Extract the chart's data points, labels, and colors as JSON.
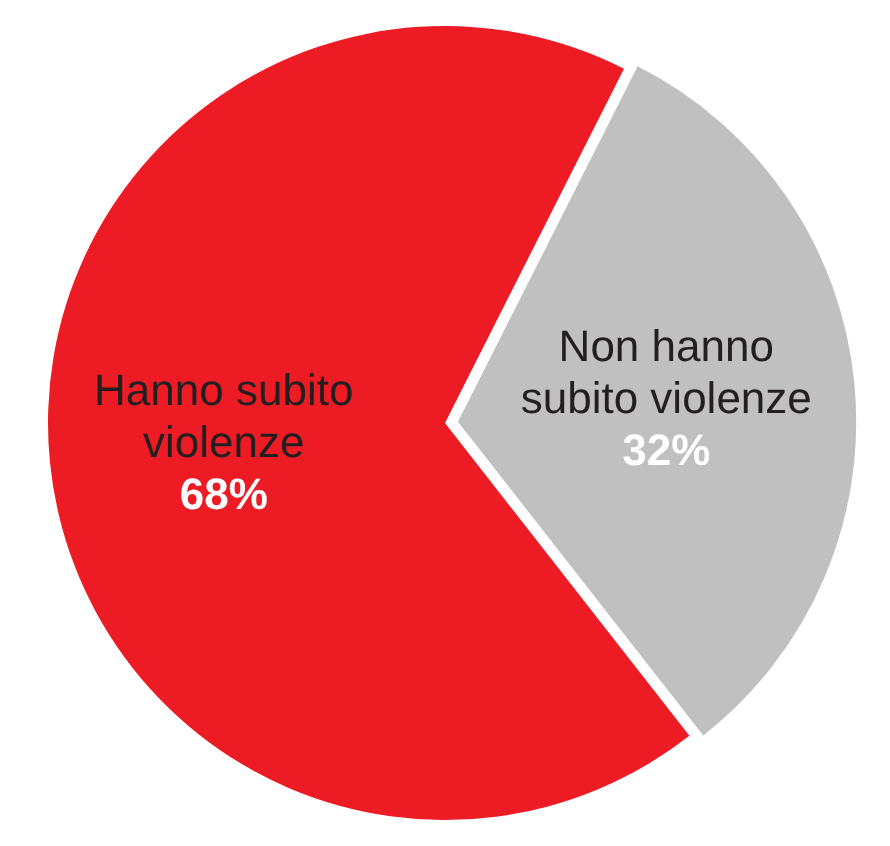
{
  "chart_data": {
    "type": "pie",
    "categories": [
      "Hanno subito violenze",
      "Non hanno subito violenze"
    ],
    "values": [
      68,
      32
    ],
    "colors": [
      "#ed1c24",
      "#c0c0c0"
    ],
    "value_labels": [
      "68%",
      "32%"
    ],
    "legend": false
  }
}
